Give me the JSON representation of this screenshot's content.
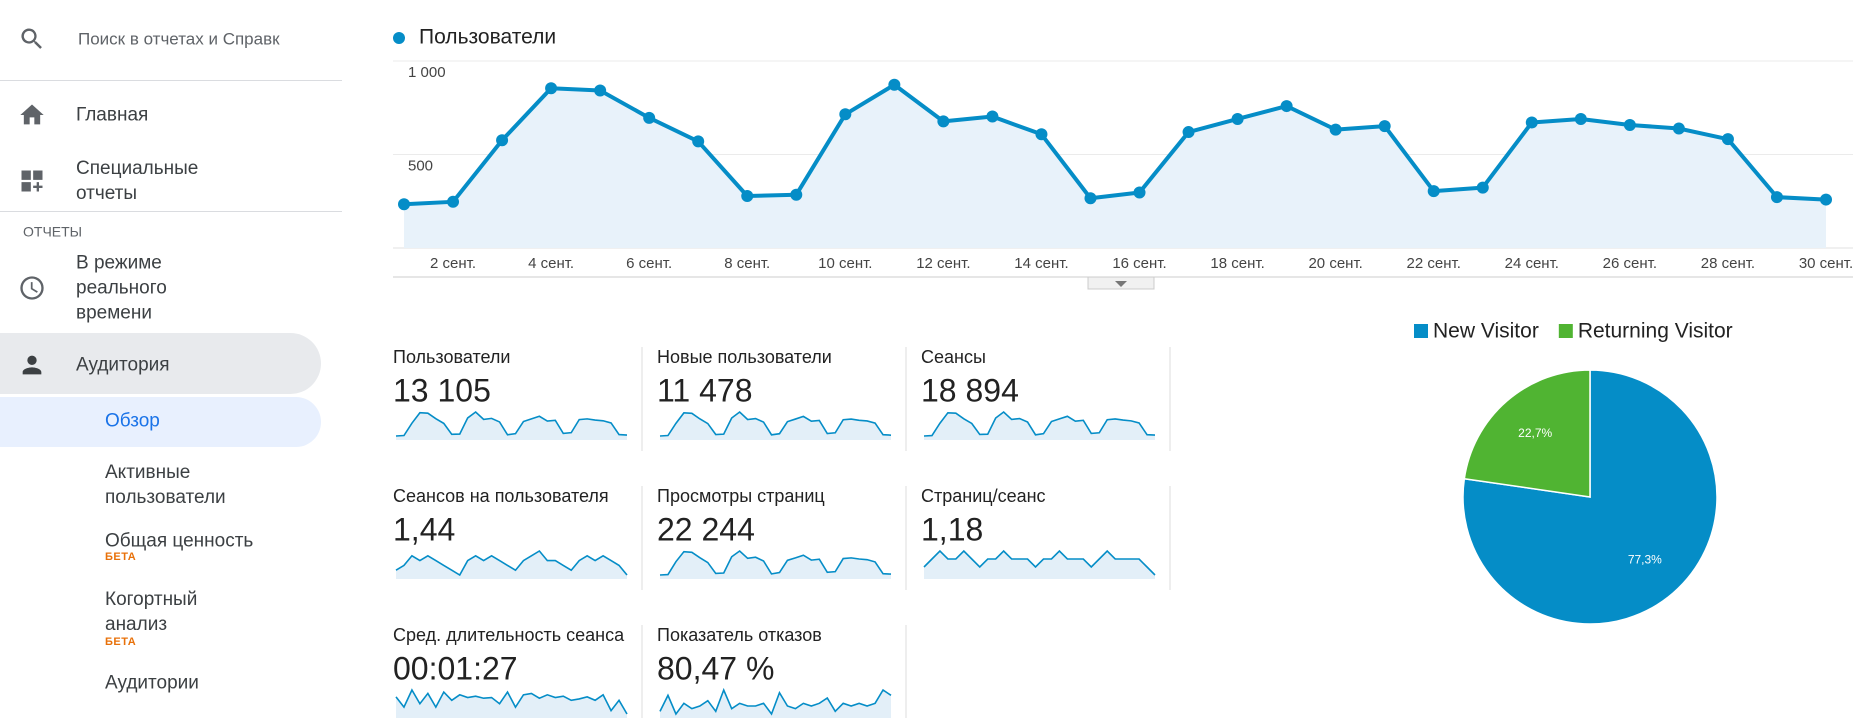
{
  "sidebar": {
    "search": "Поиск в отчетах и Справк",
    "home": "Главная",
    "custom_reports": "Специальные отчеты",
    "section": "ОТЧЕТЫ",
    "realtime": "В режиме реального времени",
    "audience": "Аудитория",
    "audience_items": [
      {
        "label": "Обзор"
      },
      {
        "label": "Активные пользователи"
      },
      {
        "label": "Общая ценность",
        "badge": "БЕТА"
      },
      {
        "label": "Когортный анализ",
        "badge": "БЕТА"
      },
      {
        "label": "Аудитории"
      }
    ]
  },
  "chart_data": [
    {
      "type": "line",
      "categories": [
        null,
        "2 сент.",
        null,
        "4 сент.",
        null,
        "6 сент.",
        null,
        "8 сент.",
        null,
        "10 сент.",
        null,
        "12 сент.",
        null,
        "14 сент.",
        null,
        "16 сент.",
        null,
        "18 сент.",
        null,
        "20 сент.",
        null,
        "22 сент.",
        null,
        "24 сент.",
        null,
        "26 сент.",
        null,
        "28 сент.",
        null,
        "30 сент."
      ],
      "series": [
        {
          "name": "Пользователи",
          "color": "#058dc7",
          "values": [
            234,
            247,
            576,
            854,
            842,
            696,
            570,
            278,
            285,
            715,
            873,
            677,
            703,
            608,
            266,
            297,
            620,
            690,
            759,
            633,
            652,
            304,
            323,
            671,
            690,
            658,
            639,
            582,
            272,
            259
          ]
        }
      ],
      "ylim": [
        0,
        1000
      ],
      "yticks": [
        500,
        {
          "value": 1000,
          "label": "1 000"
        }
      ],
      "grid": true
    },
    {
      "type": "pie",
      "categories": [
        "New Visitor",
        "Returning Visitor"
      ],
      "values": [
        77.3,
        22.7
      ],
      "value_labels": [
        "77,3%",
        "22,7%"
      ],
      "colors": [
        "#058dc7",
        "#50b432"
      ],
      "legend": "top"
    }
  ],
  "metrics": [
    {
      "label": "Пользователи",
      "value": "13 105",
      "trend": [
        234,
        247,
        576,
        854,
        842,
        696,
        570,
        278,
        285,
        715,
        873,
        677,
        703,
        608,
        266,
        297,
        620,
        690,
        759,
        633,
        652,
        304,
        323,
        671,
        690,
        658,
        639,
        582,
        272,
        259
      ]
    },
    {
      "label": "Новые пользователи",
      "value": "11 478",
      "trend": [
        205,
        216,
        500,
        745,
        735,
        605,
        495,
        240,
        248,
        625,
        765,
        590,
        612,
        530,
        232,
        258,
        540,
        600,
        662,
        550,
        568,
        262,
        280,
        585,
        600,
        572,
        556,
        506,
        236,
        225
      ]
    },
    {
      "label": "Сеансы",
      "value": "18 894",
      "trend": [
        340,
        355,
        830,
        1230,
        1215,
        1000,
        820,
        400,
        410,
        1030,
        1260,
        975,
        1010,
        875,
        385,
        430,
        895,
        995,
        1095,
        910,
        940,
        440,
        465,
        965,
        995,
        950,
        920,
        840,
        390,
        375
      ]
    },
    {
      "label": "Сеансов на пользователя",
      "value": "1,44",
      "trend": [
        1.42,
        1.43,
        1.45,
        1.44,
        1.45,
        1.44,
        1.43,
        1.42,
        1.41,
        1.44,
        1.45,
        1.44,
        1.45,
        1.44,
        1.43,
        1.42,
        1.44,
        1.45,
        1.46,
        1.44,
        1.44,
        1.43,
        1.42,
        1.44,
        1.45,
        1.44,
        1.45,
        1.44,
        1.43,
        1.41
      ]
    },
    {
      "label": "Просмотры страниц",
      "value": "22 244",
      "trend": [
        400,
        420,
        1000,
        1450,
        1420,
        1180,
        960,
        470,
        490,
        1220,
        1480,
        1150,
        1200,
        1030,
        450,
        510,
        1060,
        1170,
        1290,
        1070,
        1110,
        520,
        550,
        1140,
        1170,
        1120,
        1090,
        990,
        460,
        440
      ]
    },
    {
      "label": "Страниц/сеанс",
      "value": "1,18",
      "trend": [
        1.17,
        1.18,
        1.19,
        1.18,
        1.18,
        1.19,
        1.18,
        1.17,
        1.18,
        1.18,
        1.19,
        1.18,
        1.18,
        1.18,
        1.17,
        1.18,
        1.18,
        1.19,
        1.18,
        1.18,
        1.18,
        1.17,
        1.18,
        1.19,
        1.18,
        1.18,
        1.18,
        1.18,
        1.17,
        1.16
      ]
    },
    {
      "label": "Сред. длительность сеанса",
      "value": "00:01:27",
      "trend": [
        85,
        70,
        95,
        75,
        90,
        70,
        92,
        80,
        88,
        84,
        86,
        83,
        84,
        75,
        92,
        70,
        88,
        90,
        83,
        88,
        84,
        86,
        80,
        82,
        85,
        80,
        88,
        65,
        80,
        60
      ]
    },
    {
      "label": "Показатель отказов",
      "value": "80,47 %",
      "trend": [
        80.2,
        80.8,
        80.1,
        80.5,
        80.3,
        80.4,
        80.6,
        80.2,
        81.0,
        80.3,
        80.5,
        80.4,
        80.4,
        80.5,
        80.1,
        80.9,
        80.4,
        80.3,
        80.5,
        80.4,
        80.5,
        80.7,
        80.2,
        80.5,
        80.4,
        80.5,
        80.4,
        80.5,
        81.0,
        80.8
      ]
    }
  ]
}
